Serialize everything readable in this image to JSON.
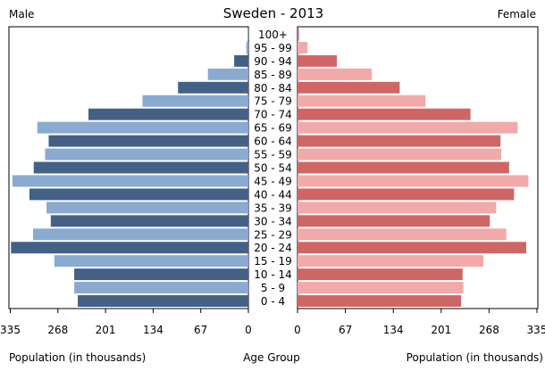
{
  "chart_data": {
    "type": "bar",
    "title": "Sweden - 2013",
    "left_label": "Male",
    "right_label": "Female",
    "xlabel_left": "Population (in thousands)",
    "xlabel_center": "Age Group",
    "xlabel_right": "Population (in thousands)",
    "xlim": [
      0,
      335
    ],
    "ticks": [
      "335",
      "268",
      "201",
      "134",
      "67",
      "0"
    ],
    "ticks_right": [
      "0",
      "67",
      "134",
      "201",
      "268",
      "335"
    ],
    "tick_values": [
      335,
      268,
      201,
      134,
      67,
      0
    ],
    "tick_values_right": [
      0,
      67,
      134,
      201,
      268,
      335
    ],
    "categories": [
      "100+",
      "95 - 99",
      "90 - 94",
      "85 - 89",
      "80 - 84",
      "75 - 79",
      "70 - 74",
      "65 - 69",
      "60 - 64",
      "55 - 59",
      "50 - 54",
      "45 - 49",
      "40 - 44",
      "35 - 39",
      "30 - 34",
      "25 - 29",
      "20 - 24",
      "15 - 19",
      "10 - 14",
      "5 - 9",
      "0 - 4"
    ],
    "series": [
      {
        "side": "left",
        "values": [
          0.5,
          3,
          20,
          57,
          99,
          149,
          225,
          297,
          281,
          286,
          302,
          332,
          308,
          284,
          278,
          303,
          334,
          273,
          245,
          245,
          240
        ]
      },
      {
        "side": "right",
        "values": [
          2,
          14,
          55,
          104,
          143,
          179,
          242,
          308,
          284,
          285,
          296,
          323,
          303,
          278,
          269,
          292,
          320,
          260,
          231,
          232,
          229
        ]
      }
    ],
    "colors": {
      "male_dark": "#436186",
      "male_light": "#8aaacf",
      "female_dark": "#cf6666",
      "female_light": "#f2a9a9"
    },
    "grid": false
  }
}
